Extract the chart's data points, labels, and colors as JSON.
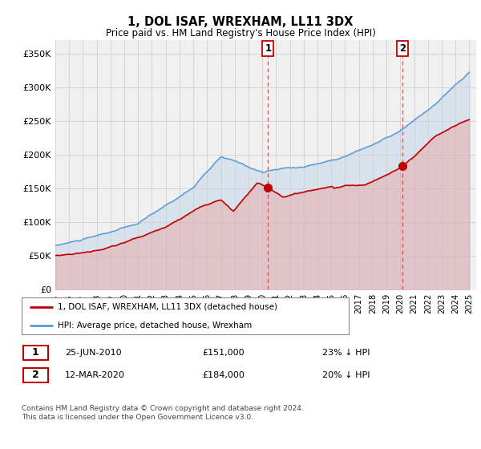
{
  "title": "1, DOL ISAF, WREXHAM, LL11 3DX",
  "subtitle": "Price paid vs. HM Land Registry's House Price Index (HPI)",
  "ylabel_ticks": [
    "£0",
    "£50K",
    "£100K",
    "£150K",
    "£200K",
    "£250K",
    "£300K",
    "£350K"
  ],
  "ytick_values": [
    0,
    50000,
    100000,
    150000,
    200000,
    250000,
    300000,
    350000
  ],
  "ylim": [
    0,
    370000
  ],
  "hpi_color": "#5b9bd5",
  "hpi_fill_color": "#aec8e8",
  "price_color": "#c00000",
  "price_fill_color": "#e8a0a0",
  "marker_color": "#c00000",
  "annotation1_date": "25-JUN-2010",
  "annotation1_price": "£151,000",
  "annotation1_hpi": "23% ↓ HPI",
  "annotation2_date": "12-MAR-2020",
  "annotation2_price": "£184,000",
  "annotation2_hpi": "20% ↓ HPI",
  "legend_line1": "1, DOL ISAF, WREXHAM, LL11 3DX (detached house)",
  "legend_line2": "HPI: Average price, detached house, Wrexham",
  "footer": "Contains HM Land Registry data © Crown copyright and database right 2024.\nThis data is licensed under the Open Government Licence v3.0.",
  "anno_box_color": "#c00000",
  "grid_color": "#d0d0d0",
  "bg_color": "#f0f0f0"
}
